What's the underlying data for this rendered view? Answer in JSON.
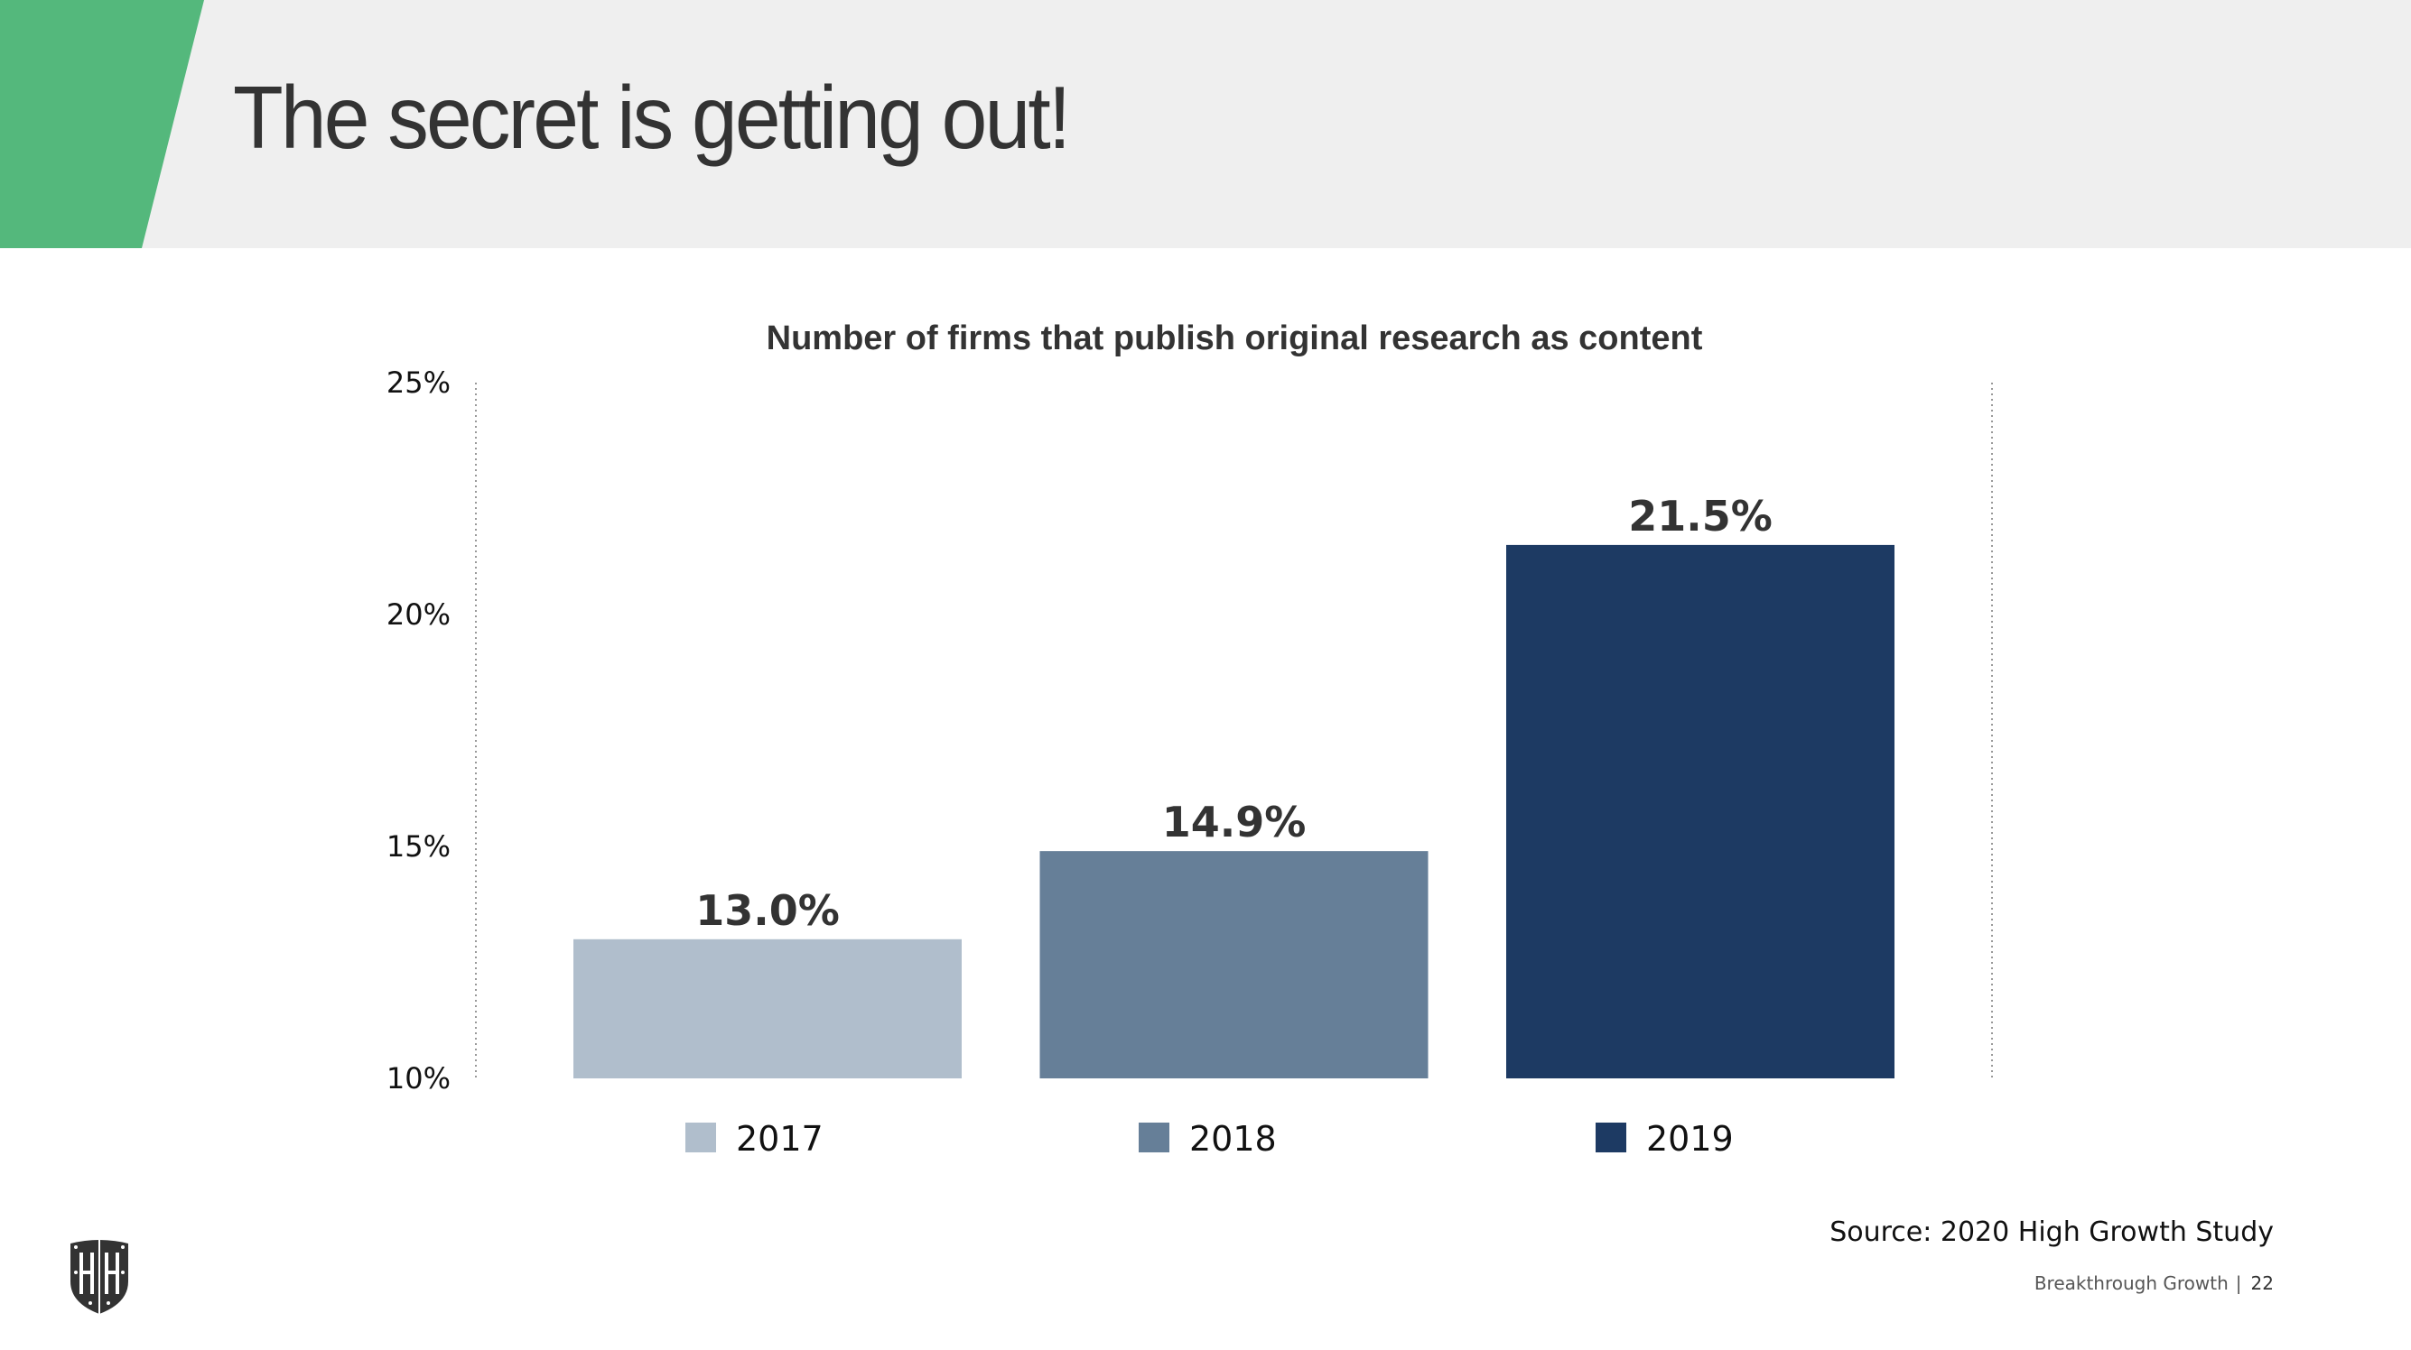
{
  "slide": {
    "title": "The secret is getting out!",
    "source": "Source: 2020 High Growth Study",
    "footer_brand": "Breakthrough Growth",
    "footer_separator": "|",
    "page_number": "22"
  },
  "colors": {
    "accent_green": "#54B87C",
    "header_bg": "#EFEFEF",
    "text_dark": "#333333"
  },
  "chart_data": {
    "type": "bar",
    "title": "Number of firms that publish original research as content",
    "categories": [
      "2017",
      "2018",
      "2019"
    ],
    "values": [
      13.0,
      14.9,
      21.5
    ],
    "data_labels": [
      "13.0%",
      "14.9%",
      "21.5%"
    ],
    "colors": [
      "#B0BECC",
      "#667F98",
      "#1D3A63"
    ],
    "xlabel": "",
    "ylabel": "",
    "ylim": [
      10,
      25
    ],
    "yticks": [
      10,
      15,
      20,
      25
    ],
    "ytick_labels": [
      "10%",
      "15%",
      "20%",
      "25%"
    ],
    "grid": false,
    "legend": [
      "2017",
      "2018",
      "2019"
    ],
    "legend_position": "bottom"
  }
}
